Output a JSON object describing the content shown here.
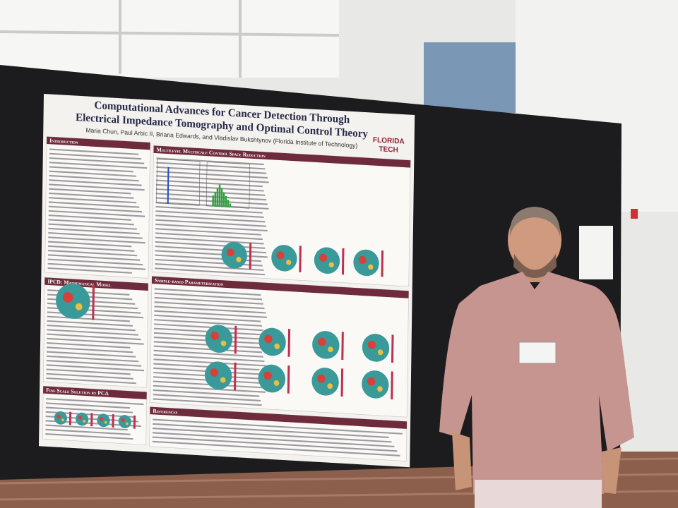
{
  "poster": {
    "title_lines": [
      "Computational Advances for Cancer Detection Through",
      "Electrical Impedance Tomography and Optimal Control Theory"
    ],
    "authors": "Maria Chun, Paul Arbic II, Briana Edwards, and Vladislav Bukshtynov (Florida Institute of Technology)",
    "logo": [
      "FLORIDA",
      "TECH"
    ],
    "sections": [
      "Introduction",
      "Multilevel Multiscale Control Space Reduction",
      "IPCD: Mathematical Model",
      "Sample-based Parameterization",
      "Fine Scale Solution by PCA",
      "References"
    ]
  }
}
